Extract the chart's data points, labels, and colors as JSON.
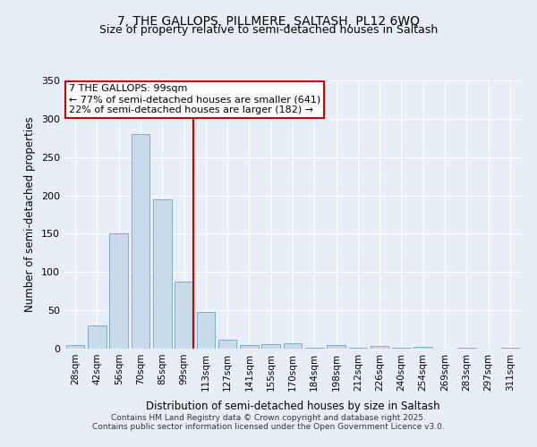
{
  "title1": "7, THE GALLOPS, PILLMERE, SALTASH, PL12 6WQ",
  "title2": "Size of property relative to semi-detached houses in Saltash",
  "xlabel": "Distribution of semi-detached houses by size in Saltash",
  "ylabel": "Number of semi-detached properties",
  "bar_labels": [
    "28sqm",
    "42sqm",
    "56sqm",
    "70sqm",
    "85sqm",
    "99sqm",
    "113sqm",
    "127sqm",
    "141sqm",
    "155sqm",
    "170sqm",
    "184sqm",
    "198sqm",
    "212sqm",
    "226sqm",
    "240sqm",
    "254sqm",
    "269sqm",
    "283sqm",
    "297sqm",
    "311sqm"
  ],
  "bar_values": [
    5,
    30,
    150,
    280,
    195,
    88,
    48,
    12,
    5,
    6,
    7,
    1,
    5,
    1,
    4,
    1,
    2,
    0,
    1,
    0,
    1
  ],
  "bar_color": "#c9daea",
  "bar_edge_color": "#7aadcc",
  "annotation_title": "7 THE GALLOPS: 99sqm",
  "annotation_line1": "← 77% of semi-detached houses are smaller (641)",
  "annotation_line2": "22% of semi-detached houses are larger (182) →",
  "annotation_box_color": "#ffffff",
  "annotation_box_edge": "#cc0000",
  "vline_color": "#cc0000",
  "vline_bar_index": 5,
  "ylim": [
    0,
    350
  ],
  "yticks": [
    0,
    50,
    100,
    150,
    200,
    250,
    300,
    350
  ],
  "footer1": "Contains HM Land Registry data © Crown copyright and database right 2025.",
  "footer2": "Contains public sector information licensed under the Open Government Licence v3.0.",
  "bg_color": "#e8eef8",
  "plot_bg_color": "#e8eef8",
  "grid_color": "#ffffff",
  "title1_fontsize": 10,
  "title2_fontsize": 9
}
